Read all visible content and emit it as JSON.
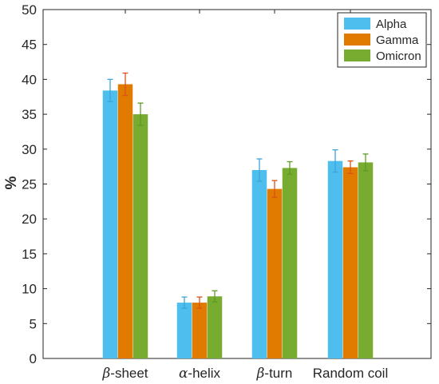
{
  "chart_data": {
    "type": "bar",
    "title": "",
    "xlabel": "",
    "ylabel": "%",
    "ylim": [
      0,
      50
    ],
    "yticks": [
      0,
      5,
      10,
      15,
      20,
      25,
      30,
      35,
      40,
      45,
      50
    ],
    "grid": false,
    "legend_position": "top-right",
    "categories": [
      {
        "prefix": "β",
        "suffix": "-sheet"
      },
      {
        "prefix": "α",
        "suffix": "-helix"
      },
      {
        "prefix": "β",
        "suffix": "-turn"
      },
      {
        "prefix": "",
        "suffix": "Random coil"
      }
    ],
    "series": [
      {
        "name": "Alpha",
        "color": "#4DBEEE",
        "values": [
          38.4,
          8.0,
          27.0,
          28.3
        ],
        "errors": [
          1.6,
          0.8,
          1.6,
          1.6
        ]
      },
      {
        "name": "Gamma",
        "color": "#D95319",
        "values": [
          39.3,
          8.0,
          24.3,
          27.4
        ],
        "errors": [
          1.6,
          0.8,
          1.2,
          0.9
        ]
      },
      {
        "name": "Omicron",
        "color": "#77AC30",
        "values": [
          35.0,
          8.9,
          27.3,
          28.1
        ],
        "errors": [
          1.6,
          0.8,
          0.9,
          1.2
        ]
      }
    ],
    "bar_colors": [
      "#4DBEEE",
      "#E07B00",
      "#77AC30"
    ],
    "error_colors": [
      "#3CA6D9",
      "#D95319",
      "#5F9A26"
    ]
  }
}
